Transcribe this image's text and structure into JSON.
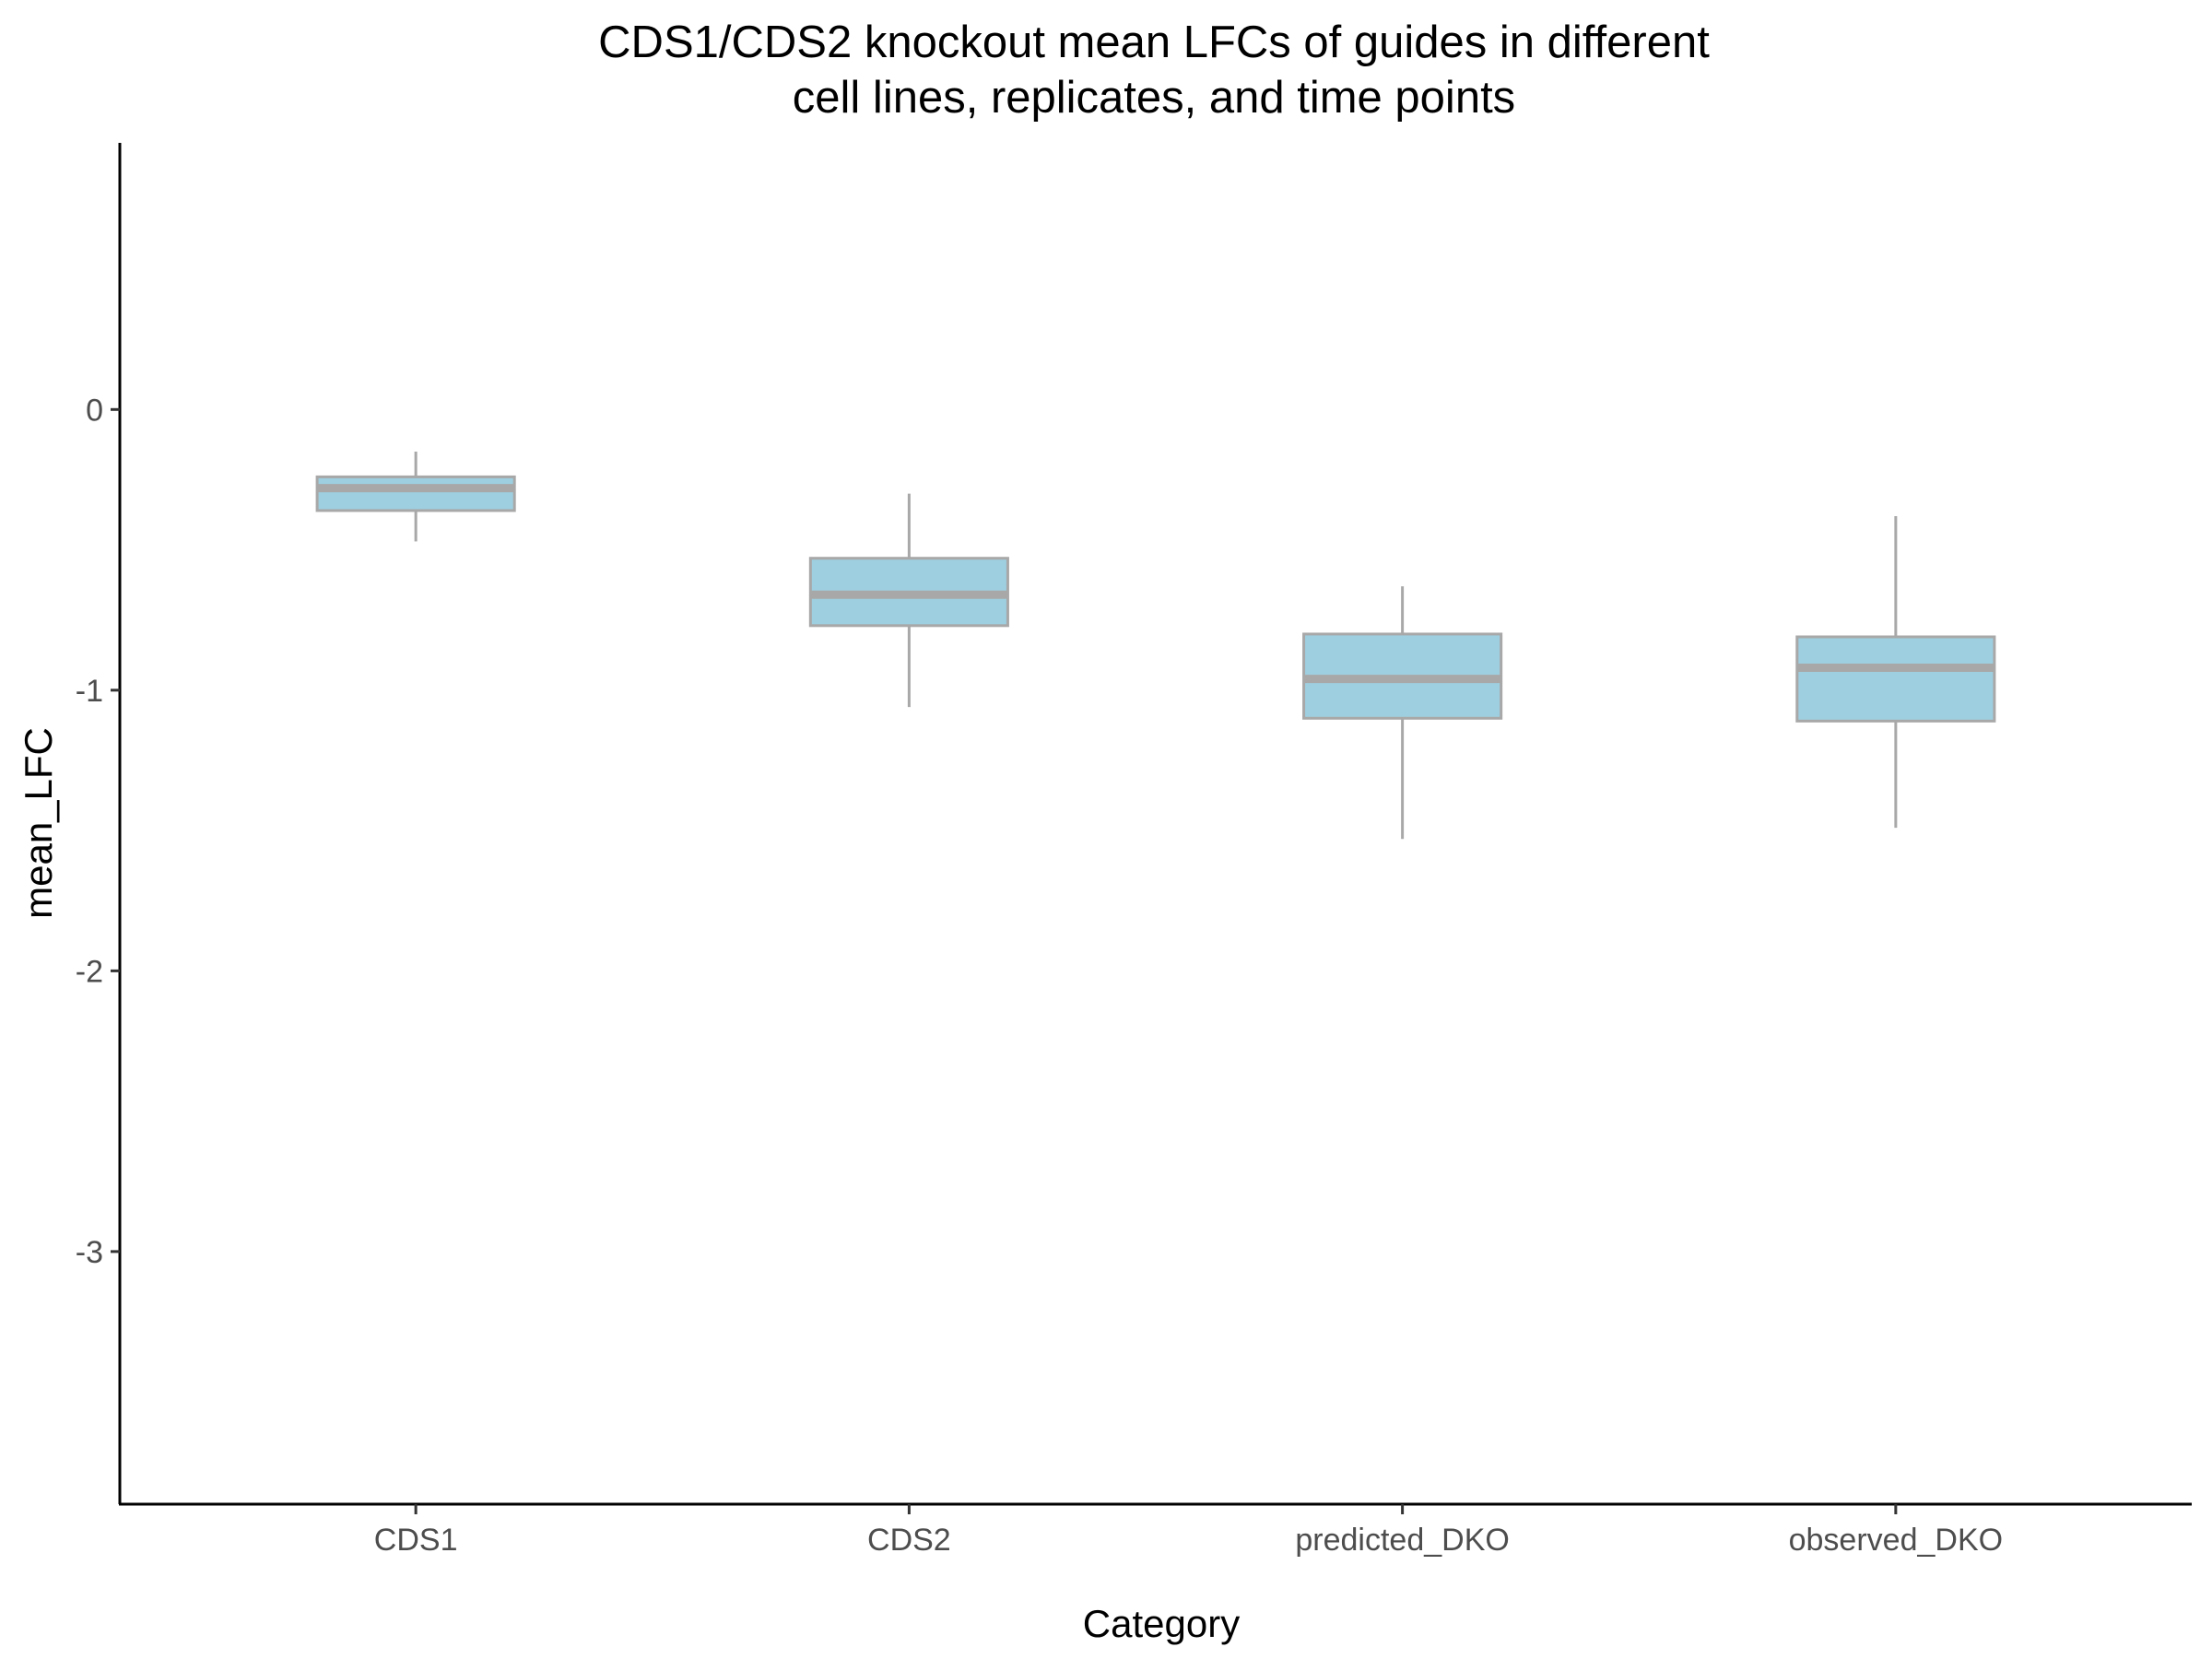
{
  "chart_data": {
    "type": "boxplot",
    "title": "CDS1/CDS2 knockout mean LFCs of guides in different",
    "subtitle": "cell lines, replicates, and time points",
    "xlabel": "Category",
    "ylabel": "mean_LFC",
    "ylim": [
      -3.9,
      0.95
    ],
    "yticks": [
      0,
      -1,
      -2,
      -3
    ],
    "grid": false,
    "legend": "none",
    "colors": {
      "box_fill": "#9ecfe0",
      "box_line": "#a8a8a8",
      "axis": "#000000",
      "tick_text": "#4d4d4d"
    },
    "categories": [
      "CDS1",
      "CDS2",
      "predicted_DKO",
      "observed_DKO"
    ],
    "boxes": [
      {
        "category": "CDS1",
        "whisker_low": -0.47,
        "q1": -0.36,
        "median": -0.28,
        "q3": -0.24,
        "whisker_high": -0.15
      },
      {
        "category": "CDS2",
        "whisker_low": -1.06,
        "q1": -0.77,
        "median": -0.66,
        "q3": -0.53,
        "whisker_high": -0.3
      },
      {
        "category": "predicted_DKO",
        "whisker_low": -1.53,
        "q1": -1.1,
        "median": -0.96,
        "q3": -0.8,
        "whisker_high": -0.63
      },
      {
        "category": "observed_DKO",
        "whisker_low": -1.49,
        "q1": -1.11,
        "median": -0.92,
        "q3": -0.81,
        "whisker_high": -0.38
      }
    ]
  }
}
